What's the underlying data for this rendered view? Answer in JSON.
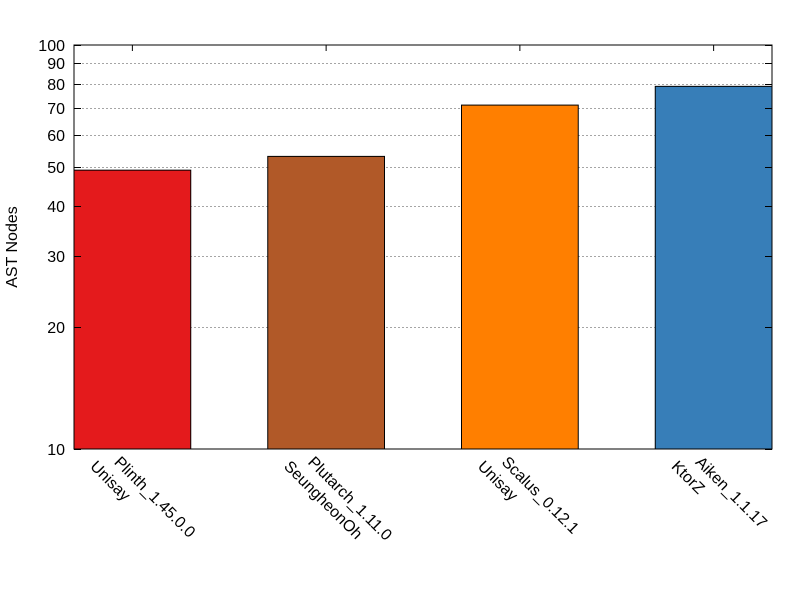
{
  "chart_data": {
    "type": "bar",
    "ylabel": "AST Nodes",
    "xlabel": "",
    "yscale": "log",
    "ylim": [
      10,
      100
    ],
    "yticks": [
      10,
      20,
      30,
      40,
      50,
      60,
      70,
      80,
      90,
      100
    ],
    "ytick_labels": [
      "10",
      "20",
      "30",
      "40",
      "50",
      "60",
      "70",
      "80",
      "90",
      "100"
    ],
    "grid": true,
    "categories": [
      [
        "Plinth_1.45.0.0",
        "Unisay"
      ],
      [
        "Plutarch_1.11.0",
        "SeungheonOh"
      ],
      [
        "Scalus_0.12.1",
        "Unisay"
      ],
      [
        "Aiken_1.1.17",
        "KtorZ"
      ]
    ],
    "values": [
      49,
      53,
      71,
      79
    ],
    "colors": [
      "#e41a1c",
      "#b15928",
      "#ff7f00",
      "#377eb8"
    ]
  }
}
